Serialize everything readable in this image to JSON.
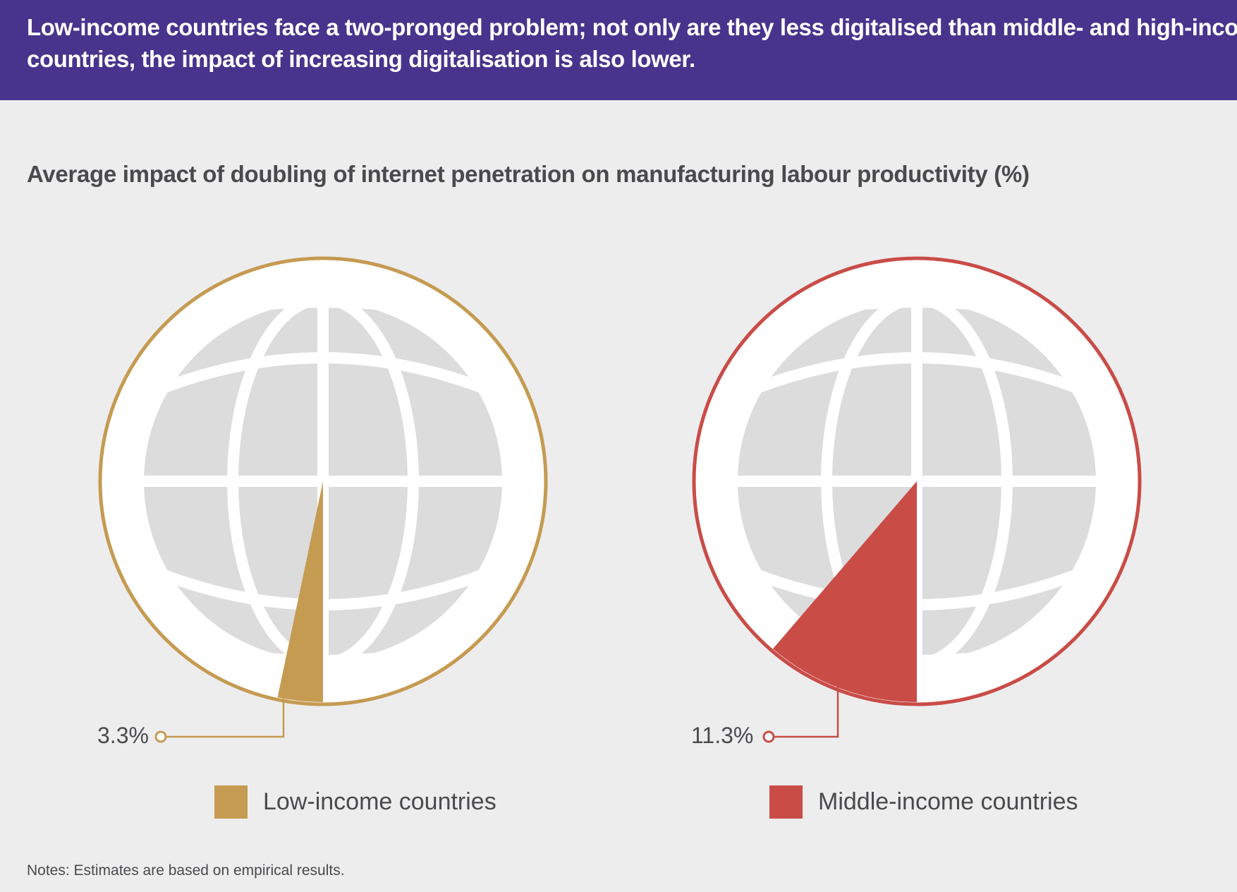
{
  "header": {
    "line1": "Low-income countries face a two-pronged problem; not only are they less digitalised than middle- and high-income",
    "line2": "countries, the impact of increasing digitalisation is also lower."
  },
  "notes": "Notes: Estimates are based on empirical results.",
  "colors": {
    "header_bg": "#48348c",
    "low_income": "#c59b52",
    "middle_income": "#c94c47",
    "globe_fill": "#dcdcdc",
    "background": "#ededee"
  },
  "chart_data": {
    "type": "pie",
    "title": "Average impact of doubling of internet penetration on manufacturing labour productivity (%)",
    "unit": "%",
    "series": [
      {
        "name": "Low-income countries",
        "value": 3.3,
        "label": "3.3%",
        "color": "#c59b52",
        "icon": "globe-icon"
      },
      {
        "name": "Middle-income countries",
        "value": 11.3,
        "label": "11.3%",
        "color": "#c94c47",
        "icon": "globe-icon"
      }
    ],
    "legend_position": "bottom"
  }
}
